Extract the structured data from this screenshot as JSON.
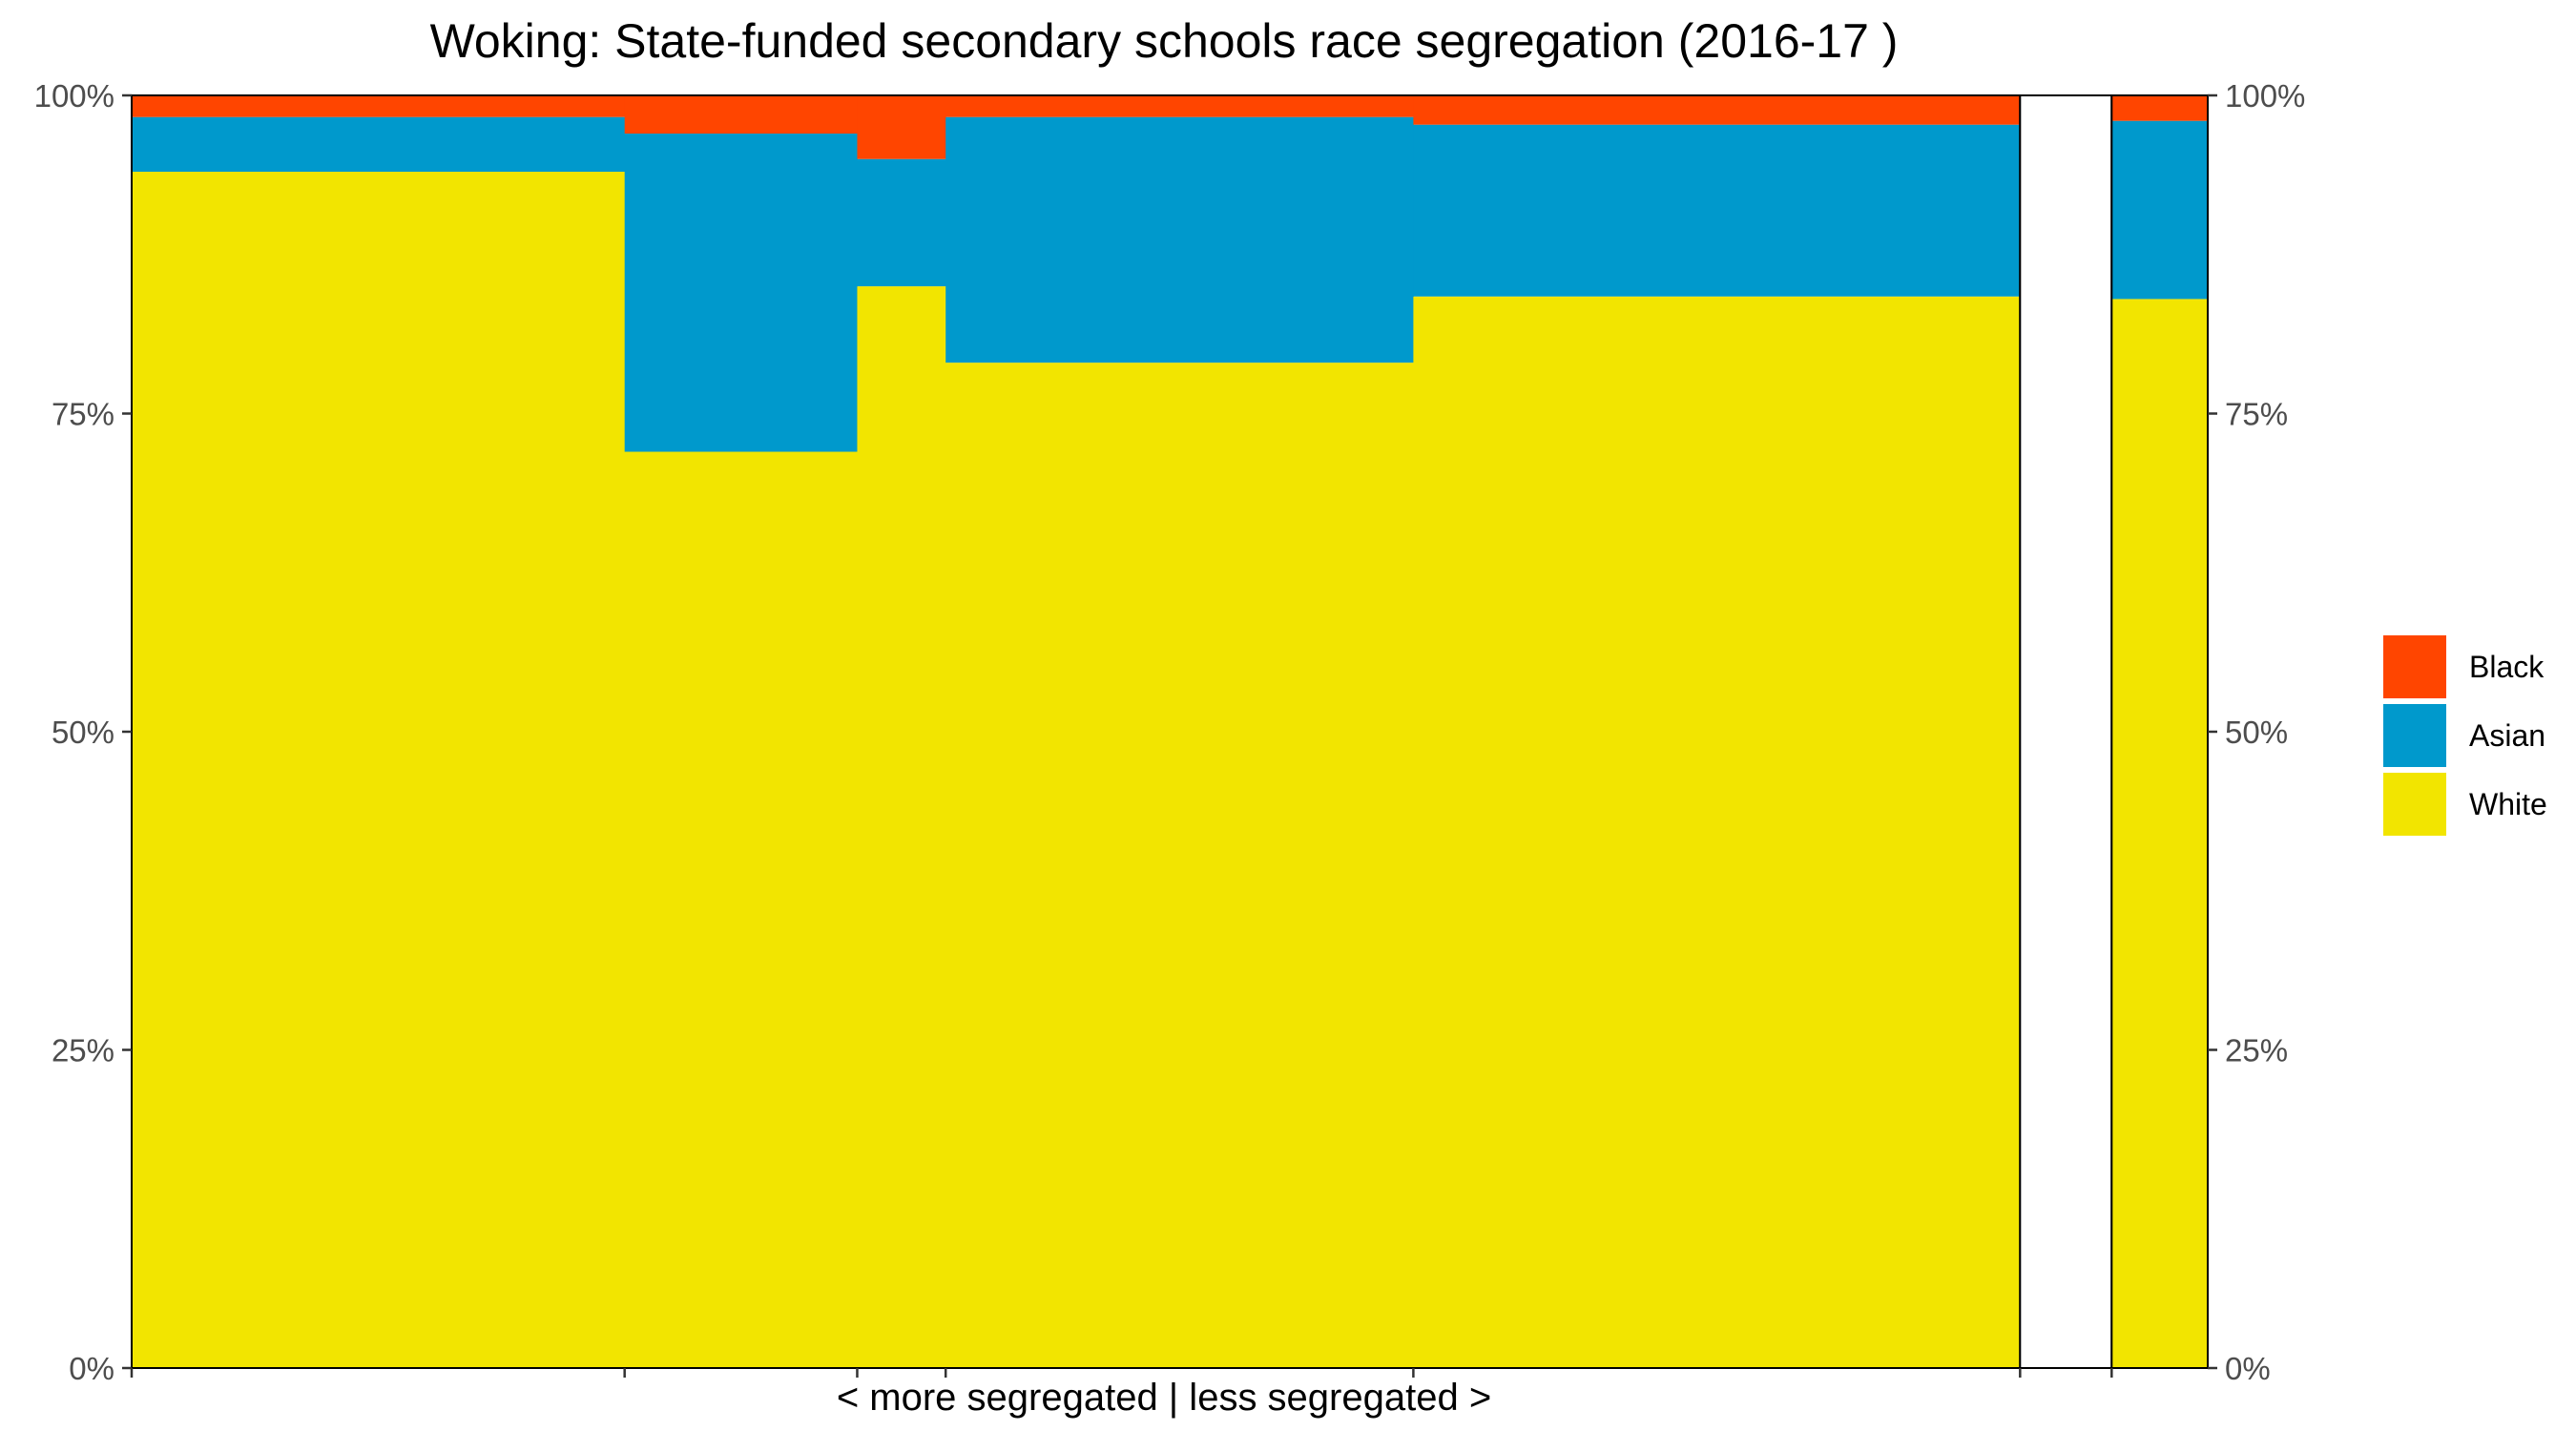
{
  "chart_data": {
    "type": "bar",
    "subtype": "stacked-100-percent-variable-width (marimekko)",
    "title": "Woking: State-funded secondary schools race segregation (2016-17 )",
    "xlabel": "< more segregated | less segregated >",
    "ylabel": "",
    "ylim": [
      0,
      100
    ],
    "y_ticks": [
      "0%",
      "25%",
      "50%",
      "75%",
      "100%"
    ],
    "y2_ticks": [
      "0%",
      "25%",
      "50%",
      "75%",
      "100%"
    ],
    "grid": false,
    "legend_position": "right",
    "series": [
      {
        "name": "Black",
        "color": "#FF4500"
      },
      {
        "name": "Asian",
        "color": "#0099CC"
      },
      {
        "name": "White",
        "color": "#F2E500"
      }
    ],
    "groups": [
      {
        "role": "schools",
        "bars": [
          {
            "width": 19.5,
            "values": {
              "White": 94.0,
              "Asian": 4.3,
              "Black": 1.7
            }
          },
          {
            "width": 9.2,
            "values": {
              "White": 72.0,
              "Asian": 25.0,
              "Black": 3.0
            }
          },
          {
            "width": 3.5,
            "values": {
              "White": 85.0,
              "Asian": 10.0,
              "Black": 5.0
            }
          },
          {
            "width": 18.5,
            "values": {
              "White": 79.0,
              "Asian": 19.3,
              "Black": 1.7
            }
          },
          {
            "width": 24.0,
            "values": {
              "White": 84.2,
              "Asian": 13.5,
              "Black": 2.3
            }
          }
        ]
      },
      {
        "role": "total",
        "bars": [
          {
            "width": 3.8,
            "values": {
              "White": 84.0,
              "Asian": 14.0,
              "Black": 2.0
            }
          }
        ]
      }
    ]
  }
}
